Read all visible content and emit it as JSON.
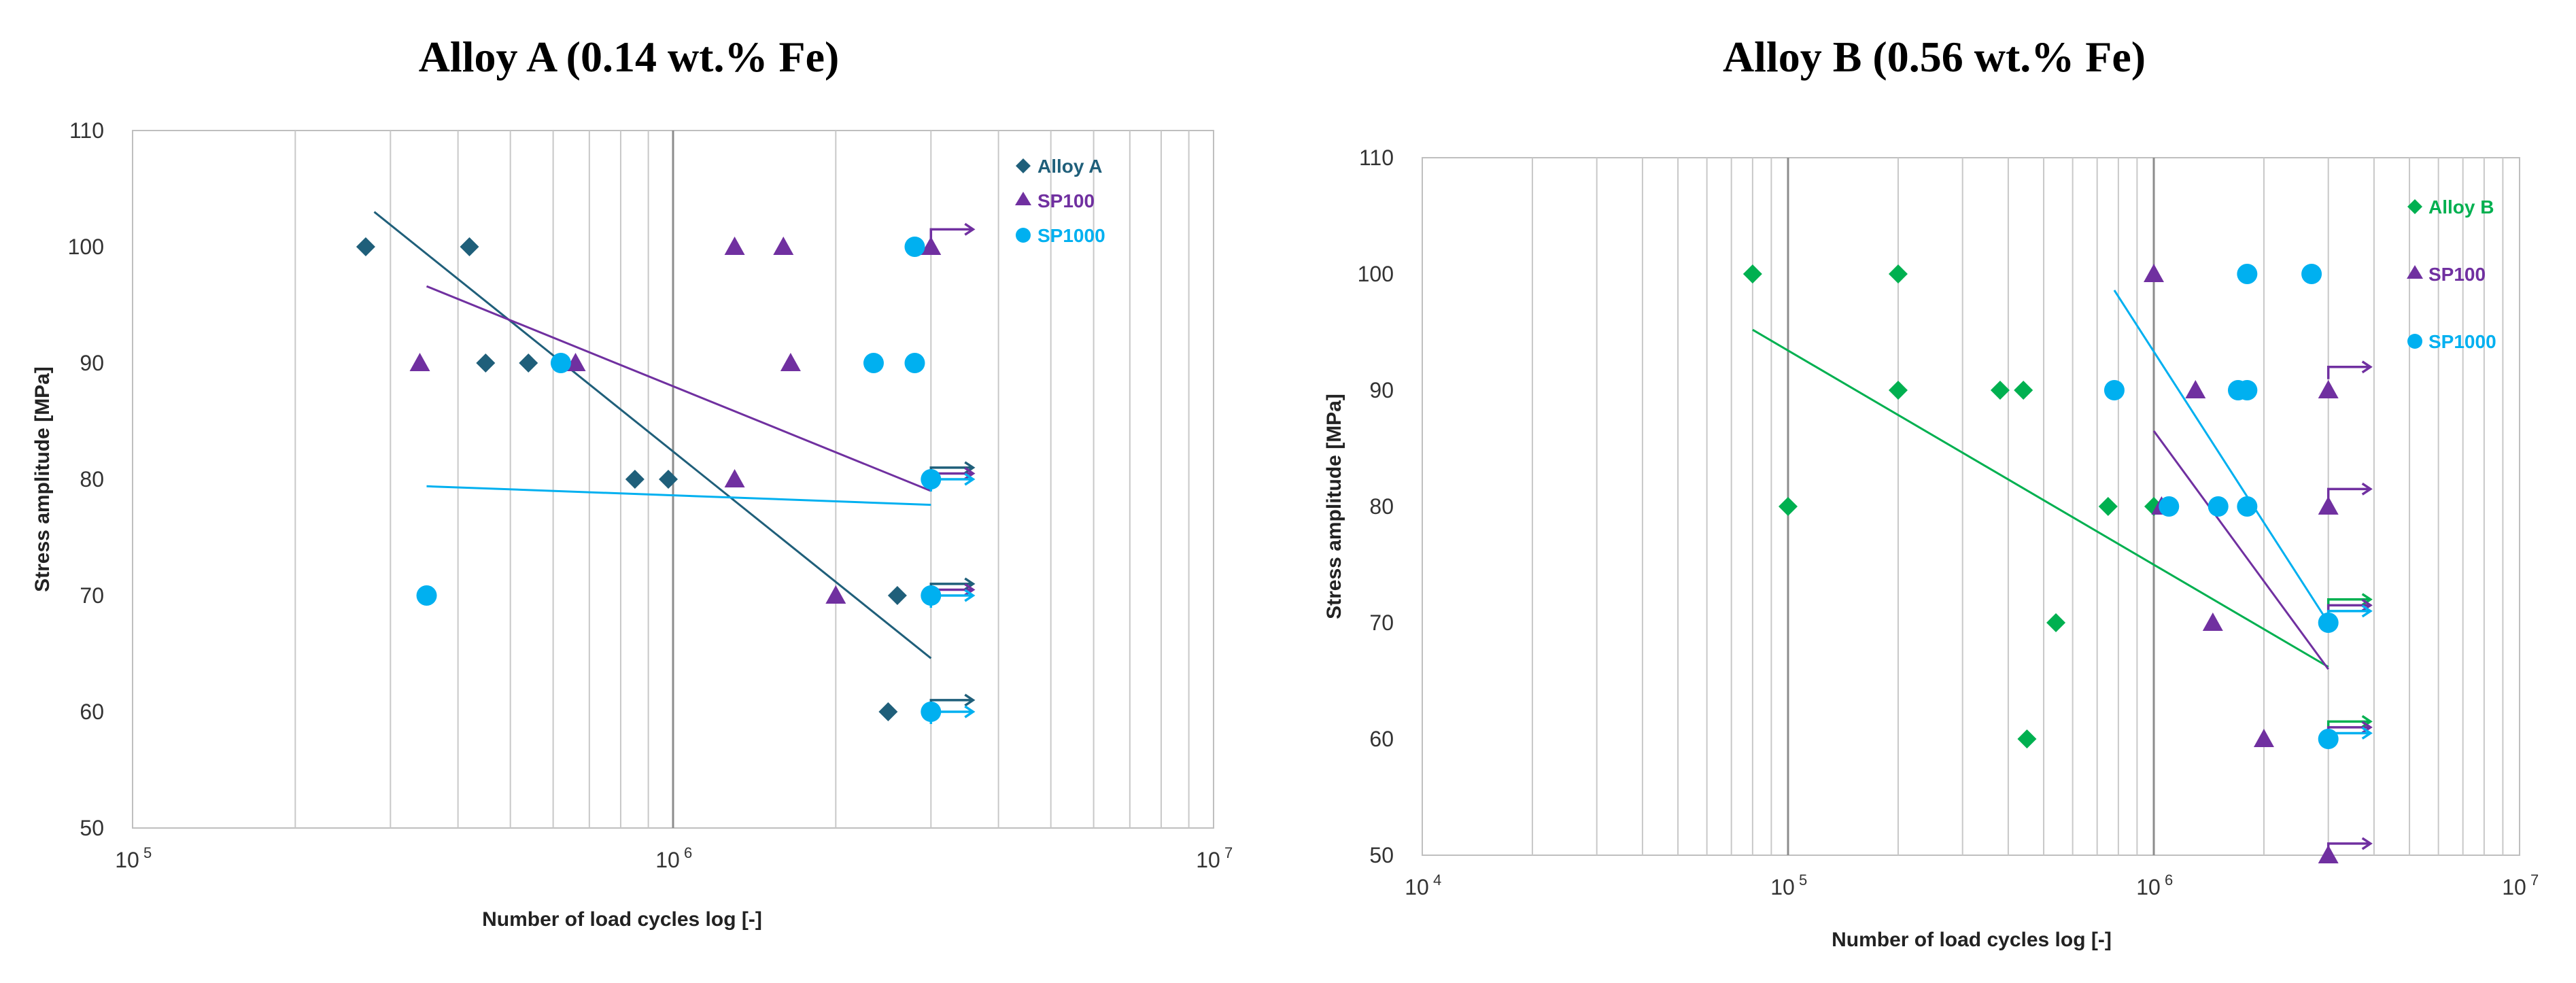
{
  "chart_data": [
    {
      "type": "scatter",
      "title": "Alloy A (0.14 wt.% Fe)",
      "xlabel": "Number of load cycles log [-]",
      "ylabel": "Stress amplitude [MPa]",
      "x_scale": "log",
      "xlim": [
        100000,
        10000000
      ],
      "ylim": [
        50,
        110
      ],
      "y_ticks": [
        50,
        60,
        70,
        80,
        90,
        100,
        110
      ],
      "x_ticks": [
        {
          "value": 100000,
          "base": "10",
          "exp": "5"
        },
        {
          "value": 1000000,
          "base": "10",
          "exp": "6"
        },
        {
          "value": 10000000,
          "base": "10",
          "exp": "7"
        }
      ],
      "legend_position": "top-right",
      "series": [
        {
          "name": "Alloy A",
          "color": "#1f5f7a",
          "marker": "diamond",
          "points": [
            [
              270000,
              100
            ],
            [
              420000,
              100
            ],
            [
              450000,
              90
            ],
            [
              540000,
              90
            ],
            [
              850000,
              80
            ],
            [
              980000,
              80
            ],
            [
              2600000,
              70
            ],
            [
              2500000,
              60
            ]
          ],
          "runouts": [
            [
              3000000,
              81
            ],
            [
              3000000,
              71
            ],
            [
              3000000,
              61
            ]
          ],
          "trend": [
            [
              280000,
              103
            ],
            [
              3000000,
              64.6
            ]
          ]
        },
        {
          "name": "SP100",
          "color": "#7030a0",
          "marker": "triangle",
          "points": [
            [
              340000,
              90
            ],
            [
              660000,
              90
            ],
            [
              1300000,
              100
            ],
            [
              1600000,
              100
            ],
            [
              1650000,
              90
            ],
            [
              1300000,
              80
            ],
            [
              2000000,
              70
            ],
            [
              3000000,
              100
            ]
          ],
          "runouts": [
            [
              3000000,
              101.5
            ],
            [
              3000000,
              80.5
            ],
            [
              3000000,
              70.5
            ]
          ],
          "trend": [
            [
              350000,
              96.6
            ],
            [
              3000000,
              79
            ]
          ]
        },
        {
          "name": "SP1000",
          "color": "#00b0f0",
          "marker": "circle",
          "points": [
            [
              350000,
              70
            ],
            [
              620000,
              90
            ],
            [
              2350000,
              90
            ],
            [
              2800000,
              90
            ],
            [
              2800000,
              100
            ],
            [
              3000000,
              80
            ],
            [
              3000000,
              70
            ],
            [
              3000000,
              60
            ]
          ],
          "runouts": [
            [
              3000000,
              80
            ],
            [
              3000000,
              70
            ],
            [
              3000000,
              60
            ]
          ],
          "trend": [
            [
              350000,
              79.4
            ],
            [
              3000000,
              77.8
            ]
          ]
        }
      ]
    },
    {
      "type": "scatter",
      "title": "Alloy B (0.56 wt.% Fe)",
      "xlabel": "Number of load cycles log [-]",
      "ylabel": "Stress amplitude [MPa]",
      "x_scale": "log",
      "xlim": [
        10000,
        10000000
      ],
      "ylim": [
        50,
        110
      ],
      "y_ticks": [
        50,
        60,
        70,
        80,
        90,
        100,
        110
      ],
      "x_ticks": [
        {
          "value": 10000,
          "base": "10",
          "exp": "4"
        },
        {
          "value": 100000,
          "base": "10",
          "exp": "5"
        },
        {
          "value": 1000000,
          "base": "10",
          "exp": "6"
        },
        {
          "value": 10000000,
          "base": "10",
          "exp": "7"
        }
      ],
      "legend_position": "top-right",
      "series": [
        {
          "name": "Alloy B",
          "color": "#00b050",
          "marker": "diamond",
          "points": [
            [
              80000,
              100
            ],
            [
              200000,
              100
            ],
            [
              200000,
              90
            ],
            [
              380000,
              90
            ],
            [
              440000,
              90
            ],
            [
              100000,
              80
            ],
            [
              750000,
              80
            ],
            [
              1000000,
              80
            ],
            [
              540000,
              70
            ],
            [
              450000,
              60
            ]
          ],
          "runouts": [
            [
              3000000,
              72
            ],
            [
              3000000,
              61.5
            ]
          ],
          "trend": [
            [
              80000,
              95.2
            ],
            [
              3000000,
              66.2
            ]
          ]
        },
        {
          "name": "SP100",
          "color": "#7030a0",
          "marker": "triangle",
          "points": [
            [
              1000000,
              100
            ],
            [
              1300000,
              90
            ],
            [
              3000000,
              90
            ],
            [
              1050000,
              80
            ],
            [
              3000000,
              80
            ],
            [
              1450000,
              70
            ],
            [
              2000000,
              60
            ],
            [
              3000000,
              50
            ]
          ],
          "runouts": [
            [
              3000000,
              92
            ],
            [
              3000000,
              81.5
            ],
            [
              3000000,
              71.5
            ],
            [
              3000000,
              61
            ],
            [
              3000000,
              51
            ]
          ],
          "trend": [
            [
              1000000,
              86.5
            ],
            [
              3000000,
              66
            ]
          ]
        },
        {
          "name": "SP1000",
          "color": "#00b0f0",
          "marker": "circle",
          "points": [
            [
              780000,
              90
            ],
            [
              1100000,
              80
            ],
            [
              1500000,
              80
            ],
            [
              1700000,
              90
            ],
            [
              1800000,
              90
            ],
            [
              1800000,
              100
            ],
            [
              1800000,
              80
            ],
            [
              2700000,
              100
            ],
            [
              3000000,
              70
            ],
            [
              3000000,
              60
            ]
          ],
          "runouts": [
            [
              3000000,
              71
            ],
            [
              3000000,
              60.5
            ]
          ],
          "trend": [
            [
              780000,
              98.6
            ],
            [
              3000000,
              70
            ]
          ]
        }
      ]
    }
  ]
}
